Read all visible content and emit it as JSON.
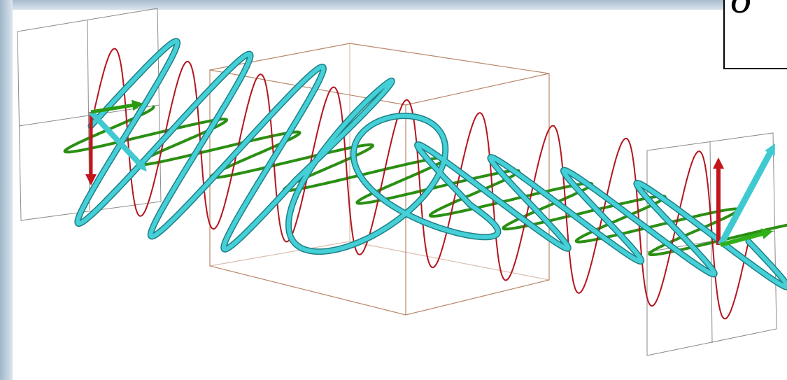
{
  "symbol": {
    "label": "δ"
  }
}
